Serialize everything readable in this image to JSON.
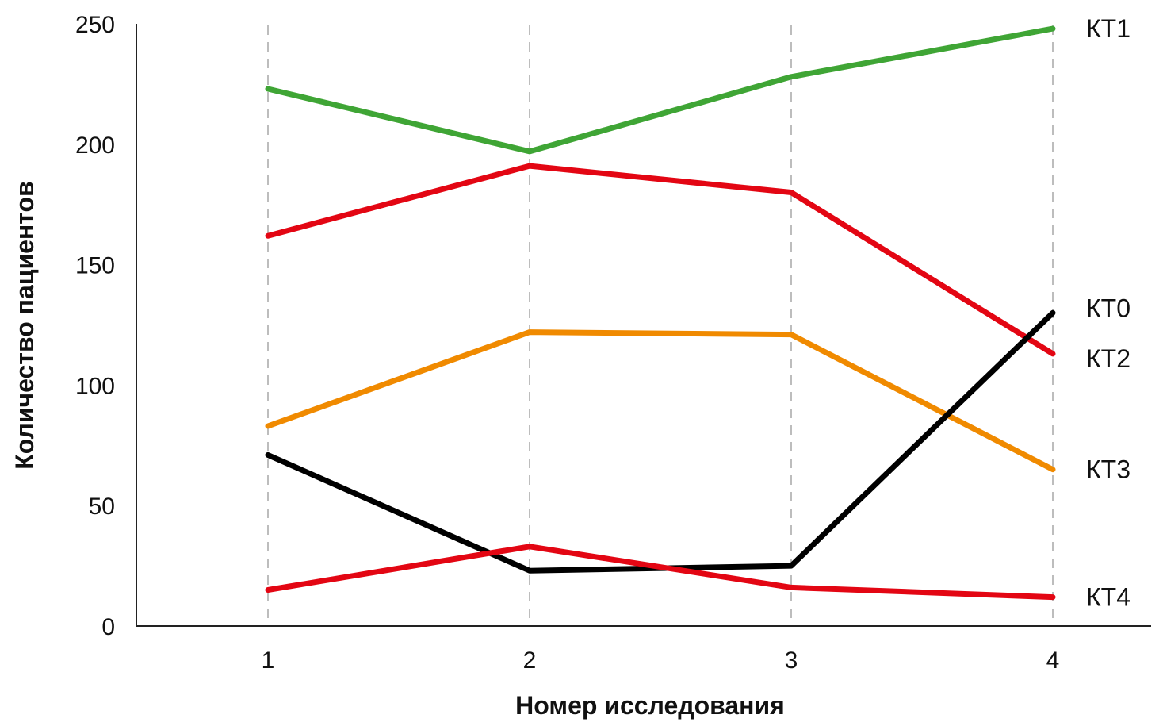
{
  "chart_data": {
    "type": "line",
    "xlabel": "Номер исследования",
    "ylabel": "Количество пациентов",
    "x": [
      1,
      2,
      3,
      4
    ],
    "x_tick_labels": [
      "1",
      "2",
      "3",
      "4"
    ],
    "ylim": [
      0,
      250
    ],
    "y_ticks": [
      0,
      50,
      100,
      150,
      200,
      250
    ],
    "y_tick_labels": [
      "0",
      "50",
      "100",
      "150",
      "200",
      "250"
    ],
    "grid": "vertical dashed guides at each x category",
    "legend": "direct labels at right end of lines",
    "series": [
      {
        "name": "КТ1",
        "color": "#3fa535",
        "values": [
          223,
          197,
          228,
          248
        ]
      },
      {
        "name": "КТ2",
        "color": "#e30613",
        "values": [
          162,
          191,
          180,
          113
        ]
      },
      {
        "name": "КТ3",
        "color": "#f08a00",
        "values": [
          83,
          122,
          121,
          65
        ]
      },
      {
        "name": "КТ0",
        "color": "#000000",
        "values": [
          71,
          23,
          25,
          130
        ]
      },
      {
        "name": "КТ4",
        "color": "#e30613",
        "values": [
          15,
          33,
          16,
          12
        ]
      }
    ]
  }
}
